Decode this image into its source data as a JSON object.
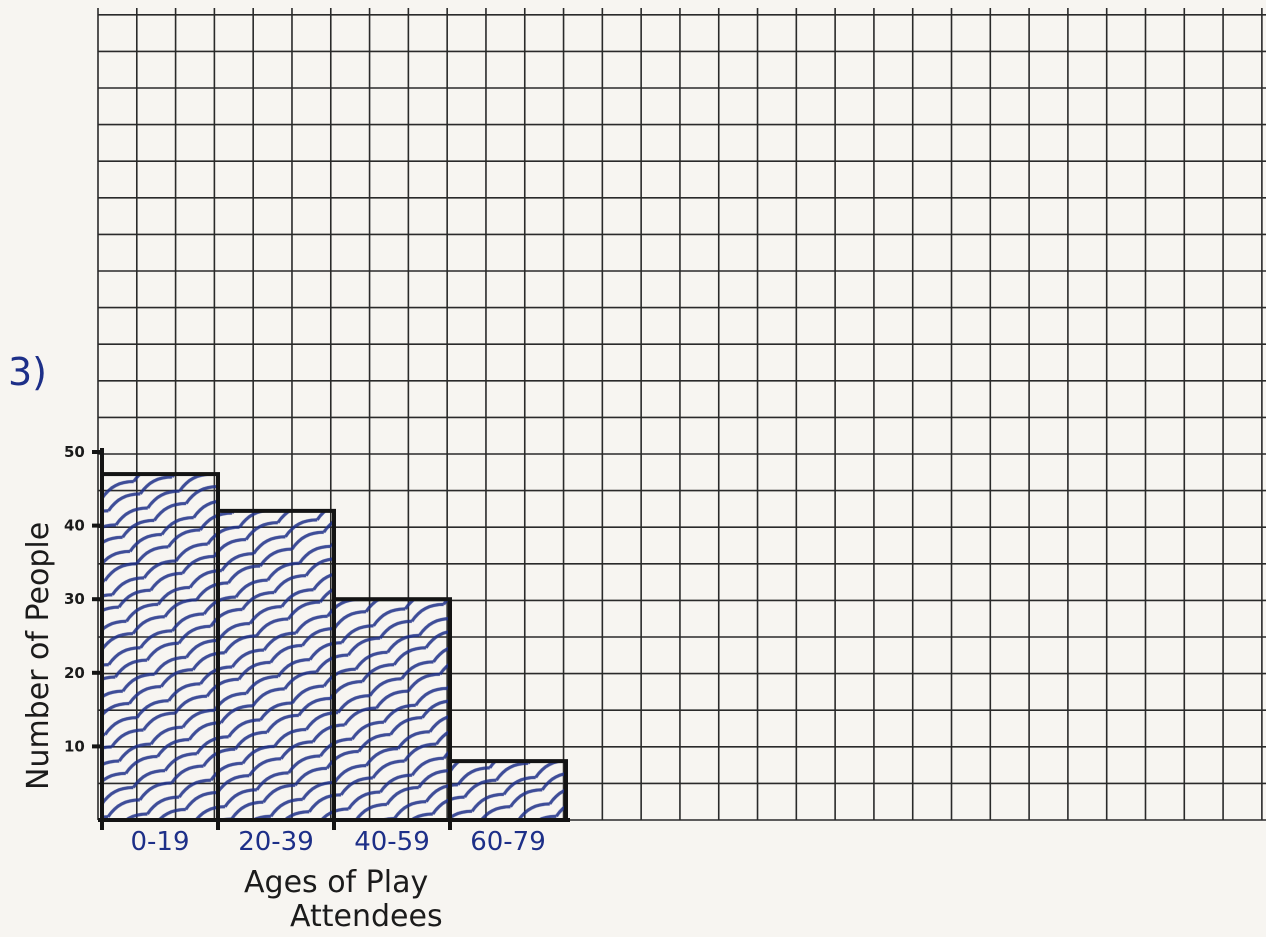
{
  "problem_number": "3)",
  "chart_data": {
    "type": "bar",
    "categories": [
      "0-19",
      "20-39",
      "40-59",
      "60-79"
    ],
    "values": [
      47,
      42,
      30,
      8
    ],
    "xlabel_lines": [
      "Ages of Play",
      "Attendees"
    ],
    "ylabel": "Number of People",
    "ylim": [
      0,
      50
    ],
    "yticks": [
      "10",
      "20",
      "30",
      "40",
      "50"
    ],
    "grid": true,
    "legend": "none",
    "colors": {
      "fill_scribble": "#1d2f88",
      "outline": "#141414",
      "grid": "#2a2a2a",
      "paper": "#f7f5f1"
    }
  }
}
